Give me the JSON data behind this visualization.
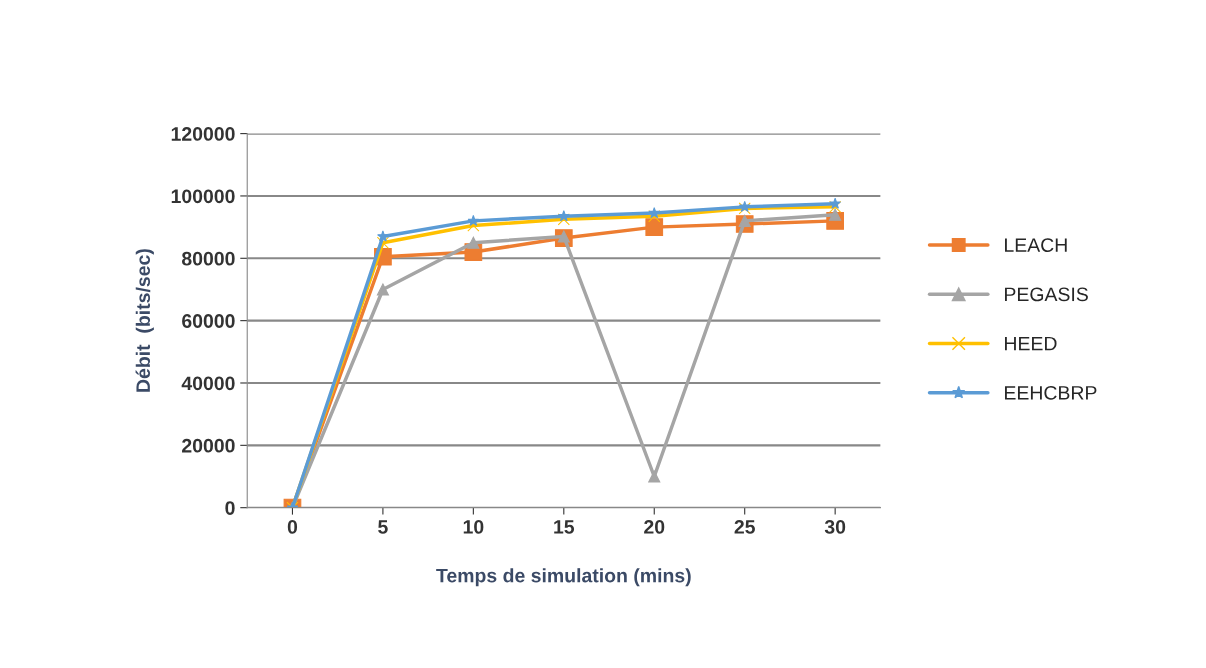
{
  "chart_data": {
    "type": "line",
    "xlabel": "Temps de simulation (mins)",
    "ylabel": "Débit  (bits/sec)",
    "categories": [
      "0",
      "5",
      "10",
      "15",
      "20",
      "25",
      "30"
    ],
    "series": [
      {
        "name": "LEACH",
        "color": "#ed7d31",
        "marker": "square",
        "values": [
          0,
          80500,
          82000,
          86500,
          90000,
          91000,
          92000
        ]
      },
      {
        "name": "PEGASIS",
        "color": "#a5a5a5",
        "marker": "triangle",
        "values": [
          0,
          70000,
          85000,
          87000,
          10000,
          92000,
          94000
        ]
      },
      {
        "name": "HEED",
        "color": "#ffc000",
        "marker": "cross",
        "values": [
          0,
          85000,
          90500,
          92500,
          93500,
          96000,
          96500
        ]
      },
      {
        "name": "EEHCBRP",
        "color": "#5b9bd5",
        "marker": "star",
        "values": [
          0,
          87000,
          92000,
          93500,
          94500,
          96500,
          97500
        ]
      }
    ],
    "ylim": [
      0,
      120000
    ],
    "yticks": [
      0,
      20000,
      40000,
      60000,
      80000,
      100000,
      120000
    ],
    "grid": "y",
    "legend": "right"
  }
}
